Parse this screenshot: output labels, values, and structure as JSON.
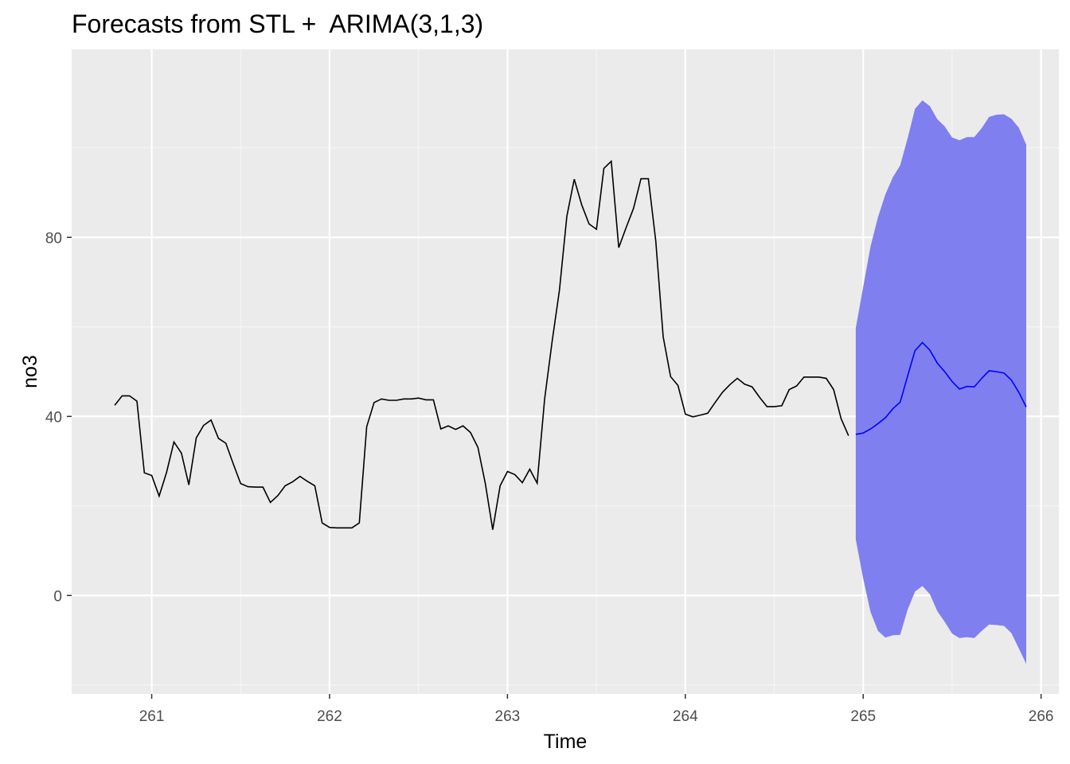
{
  "chart_data": {
    "type": "line",
    "title": "Forecasts from STL +  ARIMA(3,1,3)",
    "xlabel": "Time",
    "ylabel": "no3",
    "xlim": [
      260.55,
      266.1
    ],
    "ylim": [
      -22,
      122
    ],
    "x_ticks": [
      261,
      262,
      263,
      264,
      265,
      266
    ],
    "x_tick_labels": [
      "261",
      "262",
      "263",
      "264",
      "265",
      "266"
    ],
    "y_ticks": [
      0,
      40,
      80
    ],
    "y_tick_labels": [
      "0",
      "40",
      "80"
    ],
    "grid": true,
    "legend": "none",
    "colors": {
      "panel_background": "#ebebeb",
      "grid_major": "#ffffff",
      "grid_minor": "#f5f5f5",
      "observed_line": "#000000",
      "forecast_line": "#0000ff",
      "interval_fill": "#7f7fef",
      "axis_text": "#4d4d4d"
    },
    "observed": {
      "x_start": 260.792,
      "x_step": 0.04167,
      "values": [
        42.5,
        44.6,
        44.6,
        43.4,
        27.4,
        26.8,
        22.2,
        27.5,
        34.3,
        31.8,
        24.7,
        35.2,
        38.0,
        39.2,
        35.1,
        34.0,
        29.4,
        25.0,
        24.3,
        24.2,
        24.2,
        20.8,
        22.3,
        24.5,
        25.4,
        26.6,
        25.5,
        24.5,
        16.2,
        15.2,
        15.1,
        15.1,
        15.1,
        16.2,
        37.7,
        43.1,
        43.9,
        43.6,
        43.6,
        43.9,
        43.9,
        44.1,
        43.7,
        43.7,
        37.2,
        37.9,
        37.1,
        37.9,
        36.4,
        33.1,
        25.0,
        14.7,
        24.5,
        27.7,
        27.0,
        25.2,
        28.2,
        25.1,
        43.9,
        56.6,
        68.2,
        84.7,
        93.0,
        87.3,
        83.0,
        81.8,
        95.4,
        97.0,
        77.7,
        82.2,
        86.5,
        93.1,
        93.1,
        79.2,
        57.8,
        48.9,
        46.9,
        40.5,
        39.9,
        40.3,
        40.7,
        43.1,
        45.4,
        47.1,
        48.5,
        47.2,
        46.6,
        44.3,
        42.2,
        42.2,
        42.4,
        46.0,
        46.8,
        48.8,
        48.8,
        48.8,
        48.5,
        46.0,
        39.5,
        35.7
      ]
    },
    "forecast": {
      "x_start": 264.958,
      "x_step": 0.04167,
      "mean": [
        36.0,
        36.3,
        37.2,
        38.4,
        39.7,
        41.7,
        43.2,
        49.0,
        54.7,
        56.5,
        54.8,
        51.9,
        50.0,
        47.8,
        46.1,
        46.7,
        46.6,
        48.5,
        50.2,
        50.0,
        49.7,
        48.1,
        45.4,
        42.1
      ],
      "lower": [
        12.5,
        3.8,
        -3.7,
        -7.9,
        -9.4,
        -8.9,
        -8.8,
        -3.2,
        0.9,
        2.1,
        0.3,
        -3.5,
        -5.9,
        -8.5,
        -9.5,
        -9.3,
        -9.5,
        -7.9,
        -6.5,
        -6.6,
        -6.8,
        -8.4,
        -11.8,
        -15.3
      ],
      "upper": [
        59.7,
        68.9,
        78.0,
        84.5,
        89.6,
        93.4,
        96.1,
        102.1,
        108.7,
        110.6,
        109.3,
        106.4,
        104.8,
        102.3,
        101.7,
        102.4,
        102.4,
        104.4,
        106.9,
        107.4,
        107.5,
        106.5,
        104.5,
        100.7
      ]
    }
  }
}
